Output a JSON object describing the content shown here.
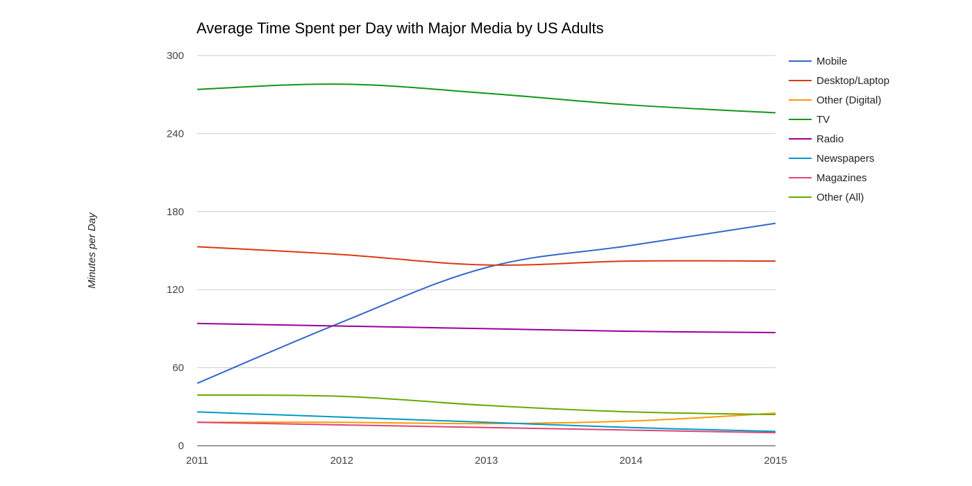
{
  "chart_data": {
    "type": "line",
    "title": "Average Time Spent per Day with Major Media by US Adults",
    "xlabel": "",
    "ylabel": "Minutes per Day",
    "x": [
      "2011",
      "2012",
      "2013",
      "2014",
      "2015"
    ],
    "ylim": [
      0,
      300
    ],
    "yticks": [
      "0",
      "60",
      "120",
      "180",
      "240",
      "300"
    ],
    "grid": true,
    "legend_position": "right",
    "series": [
      {
        "name": "Mobile",
        "color": "#3366cc",
        "values": [
          48,
          95,
          137,
          154,
          171
        ]
      },
      {
        "name": "Desktop/Laptop",
        "color": "#dc3912",
        "values": [
          153,
          147,
          139,
          142,
          142
        ]
      },
      {
        "name": "Other (Digital)",
        "color": "#ff9900",
        "values": [
          18,
          18,
          17,
          19,
          25
        ]
      },
      {
        "name": "TV",
        "color": "#109618",
        "values": [
          274,
          278,
          271,
          262,
          256
        ]
      },
      {
        "name": "Radio",
        "color": "#990099",
        "values": [
          94,
          92,
          90,
          88,
          87
        ]
      },
      {
        "name": "Newspapers",
        "color": "#0099c6",
        "values": [
          26,
          22,
          18,
          14,
          11
        ]
      },
      {
        "name": "Magazines",
        "color": "#dd4477",
        "values": [
          18,
          16,
          14,
          12,
          10
        ]
      },
      {
        "name": "Other (All)",
        "color": "#66aa00",
        "values": [
          39,
          38,
          31,
          26,
          24
        ]
      }
    ]
  }
}
